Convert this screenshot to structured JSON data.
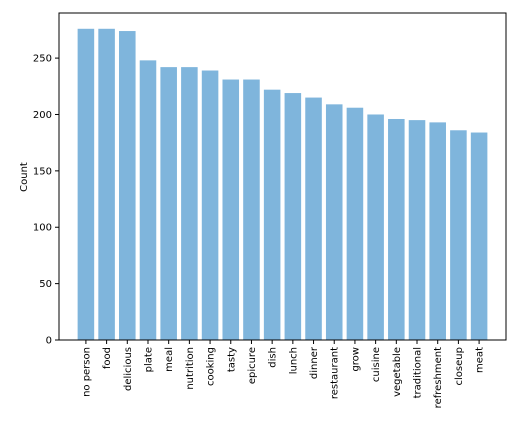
{
  "chart_data": {
    "type": "bar",
    "title": "",
    "xlabel": "",
    "ylabel": "Count",
    "ylim": [
      0,
      290
    ],
    "yticks": [
      0,
      50,
      100,
      150,
      200,
      250
    ],
    "grid": false,
    "bar_color": "#7fb5dc",
    "categories": [
      "no person",
      "food",
      "delicious",
      "plate",
      "meal",
      "nutrition",
      "cooking",
      "tasty",
      "epicure",
      "dish",
      "lunch",
      "dinner",
      "restaurant",
      "grow",
      "cuisine",
      "vegetable",
      "traditional",
      "refreshment",
      "closeup",
      "meat"
    ],
    "values": [
      276,
      276,
      274,
      248,
      242,
      242,
      239,
      231,
      231,
      222,
      219,
      215,
      209,
      206,
      200,
      196,
      195,
      193,
      186,
      184
    ]
  }
}
